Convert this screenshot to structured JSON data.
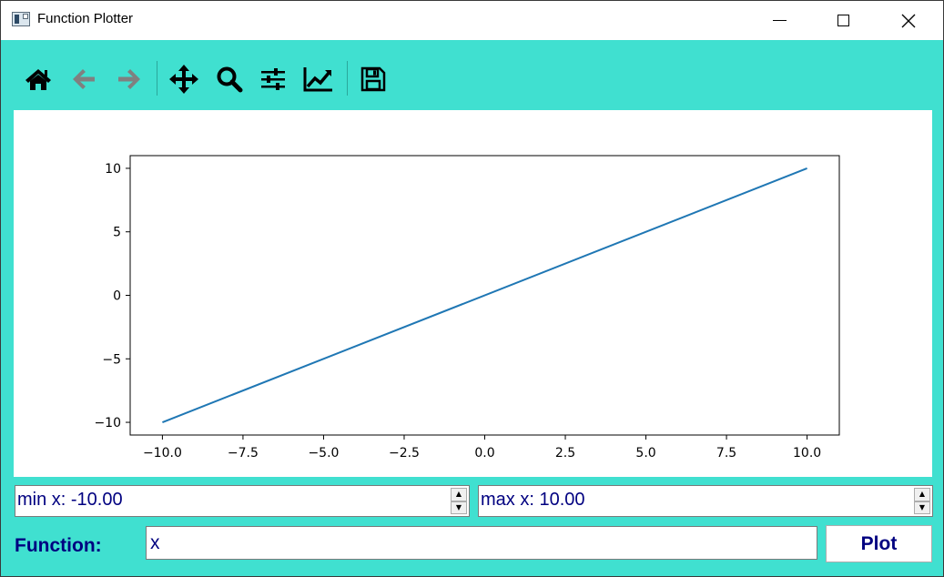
{
  "window": {
    "title": "Function Plotter",
    "background_color": "#40E0D0"
  },
  "toolbar": {
    "tools": [
      {
        "name": "home-icon"
      },
      {
        "name": "back-arrow-icon"
      },
      {
        "name": "forward-arrow-icon"
      },
      {
        "name": "pan-icon"
      },
      {
        "name": "zoom-icon"
      },
      {
        "name": "subplots-config-icon"
      },
      {
        "name": "edit-axis-icon"
      },
      {
        "name": "save-icon"
      }
    ]
  },
  "controls": {
    "min_x_text": "min x: -10.00",
    "max_x_text": "max x: 10.00",
    "function_label": "Function:",
    "function_value": "x",
    "plot_label": "Plot",
    "text_color": "#000080"
  },
  "chart_data": {
    "type": "line",
    "title": "",
    "xlabel": "",
    "ylabel": "",
    "xlim": [
      -11,
      11
    ],
    "ylim": [
      -11,
      11
    ],
    "grid": false,
    "line_color": "#1f77b4",
    "x_ticks": [
      -10.0,
      -7.5,
      -5.0,
      -2.5,
      0.0,
      2.5,
      5.0,
      7.5,
      10.0
    ],
    "x_tick_labels": [
      "−10.0",
      "−7.5",
      "−5.0",
      "−2.5",
      "0.0",
      "2.5",
      "5.0",
      "7.5",
      "10.0"
    ],
    "y_ticks": [
      -10,
      -5,
      0,
      5,
      10
    ],
    "y_tick_labels": [
      "−10",
      "−5",
      "0",
      "5",
      "10"
    ],
    "series": [
      {
        "x": [
          -10,
          10
        ],
        "y": [
          -10,
          10
        ]
      }
    ]
  }
}
